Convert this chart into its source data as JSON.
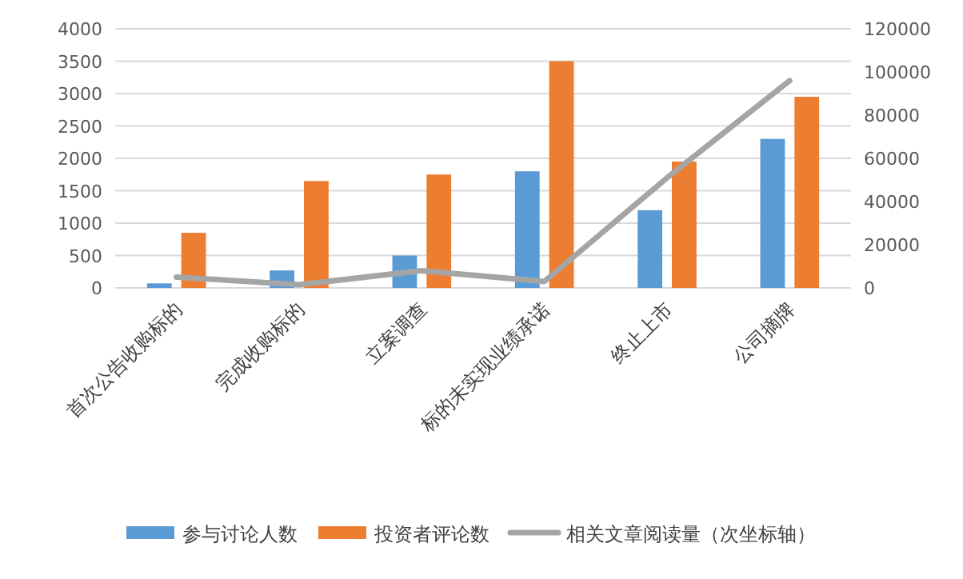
{
  "chart_data": {
    "type": "bar",
    "categories": [
      "首次公告收购标的",
      "完成收购标的",
      "立案调查",
      "标的未实现业绩承诺",
      "终止上市",
      "公司摘牌"
    ],
    "series": [
      {
        "name": "参与讨论人数",
        "color": "#5b9bd5",
        "values": [
          70,
          270,
          500,
          1800,
          1200,
          2300
        ]
      },
      {
        "name": "投资者评论数",
        "color": "#ed7d31",
        "values": [
          850,
          1650,
          1750,
          3500,
          1950,
          2950
        ]
      },
      {
        "name": "相关文章阅读量（次坐标轴）",
        "color": "#a5a5a5",
        "type": "line",
        "axis": "y2",
        "values": [
          5000,
          1500,
          8000,
          3000,
          51000,
          96000
        ]
      }
    ],
    "ylim": [
      0,
      4000
    ],
    "yticks": [
      0,
      500,
      1000,
      1500,
      2000,
      2500,
      3000,
      3500,
      4000
    ],
    "y2lim": [
      0,
      120000
    ],
    "y2ticks": [
      0,
      20000,
      40000,
      60000,
      80000,
      100000,
      120000
    ],
    "grid": "y",
    "legend": "bottom"
  }
}
